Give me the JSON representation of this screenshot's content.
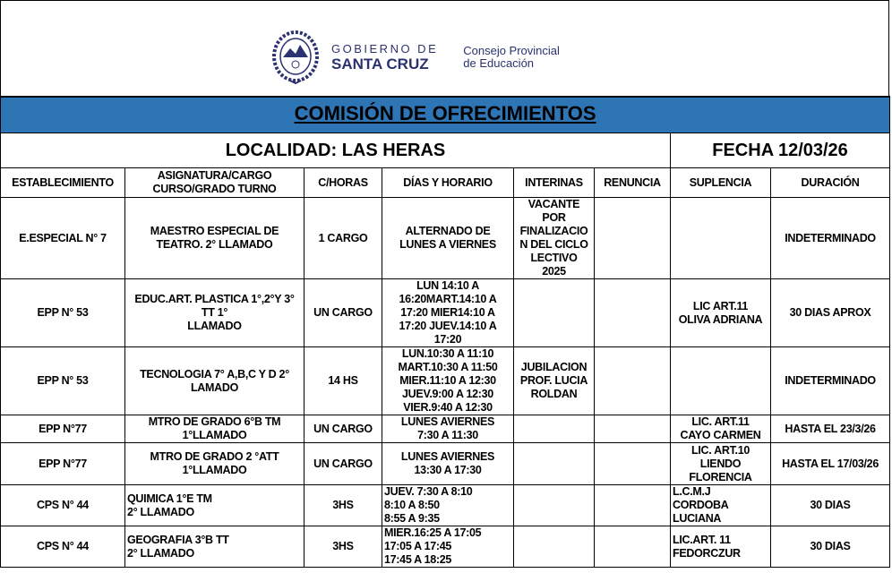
{
  "header": {
    "logo": {
      "line1": "GOBIERNO DE",
      "line2": "SANTA CRUZ"
    },
    "organization": "Consejo Provincial\nde Educación",
    "brand_color": "#2b3270"
  },
  "title": "COMISIÓN DE OFRECIMIENTOS",
  "title_bg": "#2e75b6",
  "localidad": "LOCALIDAD: LAS HERAS",
  "fecha": "FECHA 12/03/26",
  "columns": [
    "ESTABLECIMIENTO",
    "ASIGNATURA/CARGO\nCURSO/GRADO TURNO",
    "C/HORAS",
    "DÍAS Y HORARIO",
    "INTERINAS",
    "RENUNCIA",
    "SUPLENCIA",
    "DURACIÓN"
  ],
  "rows": [
    [
      "E.ESPECIAL N° 7",
      "MAESTRO ESPECIAL DE\nTEATRO. 2° LLAMADO",
      "1 CARGO",
      "ALTERNADO DE\nLUNES A VIERNES",
      "VACANTE\nPOR\nFINALIZACIO\nN DEL CICLO\nLECTIVO\n2025",
      "",
      "",
      "INDETERMINADO"
    ],
    [
      "EPP N° 53",
      "EDUC.ART. PLASTICA 1°,2°Y 3°\nTT                                    1°\nLLAMADO",
      "UN CARGO",
      "LUN 14:10 A\n16:20MART.14:10 A\n17:20 MIER14:10 A\n17:20 JUEV.14:10 A\n17:20",
      "",
      "",
      "LIC ART.11\nOLIVA ADRIANA",
      "30 DIAS APROX"
    ],
    [
      "EPP N° 53",
      "TECNOLOGIA 7° A,B,C Y D   2°\nLAMADO",
      "14 HS",
      "LUN.10:30 A 11:10\nMART.10:30 A 11:50\nMIER.11:10 A 12:30\nJUEV.9:00 A 12:30\nVIER.9:40 A 12:30",
      "JUBILACION\nPROF. LUCIA\nROLDAN",
      "",
      "",
      "INDETERMINADO"
    ],
    [
      "EPP N°77",
      "MTRO DE GRADO 6°B TM\n1°LLAMADO",
      "UN CARGO",
      "LUNES AVIERNES\n7:30 A 11:30",
      "",
      "",
      "LIC. ART.11\nCAYO CARMEN",
      "HASTA EL 23/3/26"
    ],
    [
      "EPP N°77",
      "MTRO DE GRADO 2 °ATT\n1°LLAMADO",
      "UN CARGO",
      "LUNES AVIERNES\n13:30 A 17:30",
      "",
      "",
      "LIC. ART.10\nLIENDO\nFLORENCIA",
      "HASTA EL 17/03/26"
    ],
    [
      "CPS N° 44",
      "QUIMICA 1°E TM\n          2° LLAMADO",
      "3HS",
      "JUEV. 7:30 A 8:10\n8:10 A 8:50\n    8:55 A 9:35",
      "",
      "",
      "L.C.M.J\n   CORDOBA\n   LUCIANA",
      "30 DIAS"
    ],
    [
      "CPS N° 44",
      "GEOGRAFIA  3°B TT\n          2° LLAMADO",
      "3HS",
      "MIER.16:25 A 17:05\n17:05 A 17:45\n    17:45 A 18:25",
      "",
      "",
      "LIC.ART. 11\nFEDORCZUR",
      "30 DIAS"
    ]
  ]
}
